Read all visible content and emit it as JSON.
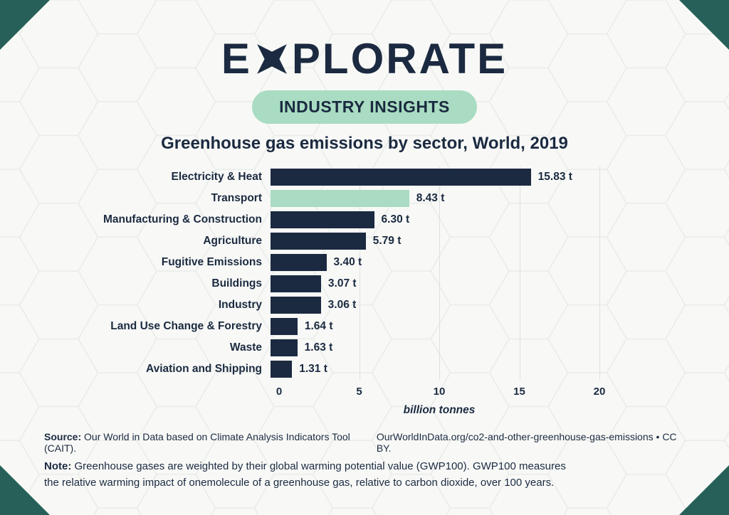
{
  "logo": {
    "prefix": "E",
    "suffix": "PLORATE"
  },
  "badge": "INDUSTRY INSIGHTS",
  "chart_data": {
    "type": "bar",
    "orientation": "horizontal",
    "title": "Greenhouse gas emissions by sector, World, 2019",
    "categories": [
      "Electricity & Heat",
      "Transport",
      "Manufacturing & Construction",
      "Agriculture",
      "Fugitive Emissions",
      "Buildings",
      "Industry",
      "Land Use Change & Forestry",
      "Waste",
      "Aviation and Shipping"
    ],
    "values": [
      15.83,
      8.43,
      6.3,
      5.79,
      3.4,
      3.07,
      3.06,
      1.64,
      1.63,
      1.31
    ],
    "value_labels": [
      "15.83 t",
      "8.43 t",
      "6.30 t",
      "5.79 t",
      "3.40 t",
      "3.07 t",
      "3.06 t",
      "1.64 t",
      "1.63 t",
      "1.31 t"
    ],
    "highlight_index": 1,
    "xlabel": "billion tonnes",
    "xlim": [
      0,
      20
    ],
    "xticks": [
      0,
      5,
      10,
      15,
      20
    ],
    "grid": "vertical-lines-at-ticks",
    "legend": "none",
    "bar_color": "#1b2a40",
    "highlight_color": "#a9dcc2"
  },
  "footer": {
    "source_label": "Source:",
    "source_text": " Our World in Data based on Climate Analysis Indicators Tool (CAIT).",
    "attribution": "OurWorldInData.org/co2-and-other-greenhouse-gas-emissions • CC BY.",
    "note_label": "Note:",
    "note_text": " Greenhouse gases are weighted by their global warming potential value (GWP100). GWP100 measures the relative warming impact of onemolecule of a greenhouse gas, relative to carbon dioxide, over 100 years."
  },
  "colors": {
    "navy": "#1b2a40",
    "mint": "#a9dcc2",
    "corner_teal": "#276058",
    "background": "#f8f9f7"
  }
}
